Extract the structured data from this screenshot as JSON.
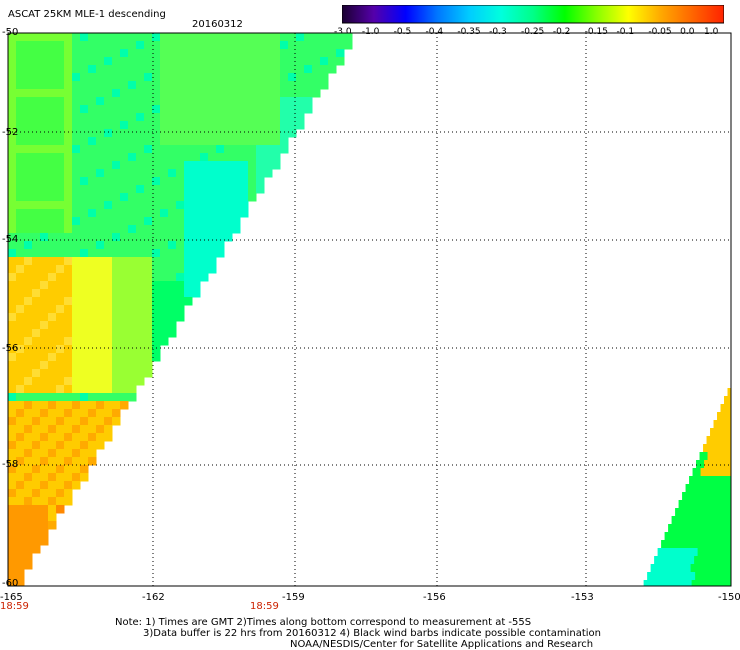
{
  "header": {
    "title": "ASCAT 25KM MLE-1 descending",
    "date": "20160312"
  },
  "colorbar": {
    "labels": [
      "-3.0",
      "-1.0",
      "-0.5",
      "-0.4",
      "-0.35",
      "-0.3",
      "-0.25",
      "-0.2",
      "-0.15",
      "-0.1",
      "-0.05",
      "0.0",
      "1.0"
    ],
    "colors": [
      "#1a0030",
      "#5500aa",
      "#0000ff",
      "#0077ff",
      "#00ccff",
      "#00ffdd",
      "#00ff88",
      "#00ff00",
      "#88ff00",
      "#ffff00",
      "#ffaa00",
      "#ff6600",
      "#ff2200"
    ]
  },
  "axes": {
    "y_labels": [
      "-50",
      "-52",
      "-54",
      "-56",
      "-58",
      "-60"
    ],
    "x_labels": [
      "-165",
      "-162",
      "-159",
      "-156",
      "-153",
      "-150"
    ],
    "x_units": "longitude",
    "y_units": "latitude"
  },
  "times": [
    "18:59",
    "18:59"
  ],
  "notes": {
    "line1": "Note: 1) Times are GMT 2)Times along bottom correspond to measurement at -55S",
    "line2": "3)Data buffer is 22 hrs from 20160312 4) Black wind barbs indicate possible contamination",
    "line3": "NOAA/NESDIS/Center for Satellite Applications and Research"
  },
  "colors": {
    "grid": "#000000",
    "time_text": "#cc2200"
  }
}
